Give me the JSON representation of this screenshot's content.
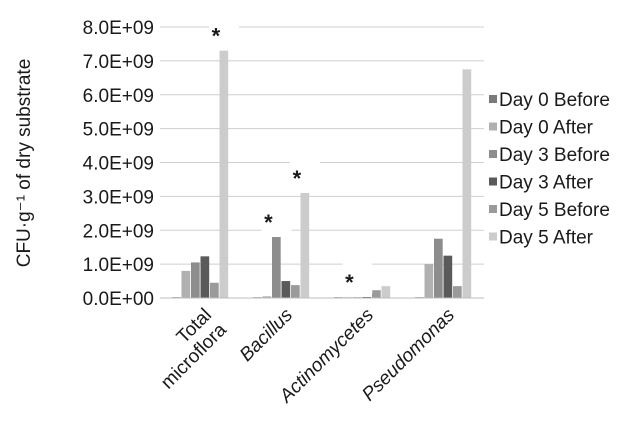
{
  "chart_data": {
    "type": "bar",
    "title": "",
    "xlabel": "",
    "ylabel": "CFU·g⁻¹ of dry substrate",
    "ylim": [
      0,
      8000000000
    ],
    "yticks": [
      0,
      1000000000,
      2000000000,
      3000000000,
      4000000000,
      5000000000,
      6000000000,
      7000000000,
      8000000000
    ],
    "ytick_labels": [
      "0.0E+00",
      "1.0E+09",
      "2.0E+09",
      "3.0E+09",
      "4.0E+09",
      "5.0E+09",
      "6.0E+09",
      "7.0E+09",
      "8.0E+09"
    ],
    "grid": "horizontal",
    "legend_position": "right",
    "categories": [
      {
        "lines": [
          "Total",
          "microflora"
        ],
        "italic": false
      },
      {
        "lines": [
          "Bacillus"
        ],
        "italic": true
      },
      {
        "lines": [
          "Actinomycetes"
        ],
        "italic": true
      },
      {
        "lines": [
          "Pseudomonas"
        ],
        "italic": true
      }
    ],
    "series": [
      {
        "name": "Day 0 Before",
        "color": "#7a7a7a",
        "values": [
          20000000,
          20000000,
          10000000,
          20000000
        ]
      },
      {
        "name": "Day 0 After",
        "color": "#b0b0b0",
        "values": [
          800000000,
          50000000,
          10000000,
          1000000000
        ]
      },
      {
        "name": "Day 3 Before",
        "color": "#8d8d8d",
        "values": [
          1050000000,
          1800000000,
          20000000,
          1750000000
        ]
      },
      {
        "name": "Day 3 After",
        "color": "#5a5a5a",
        "values": [
          1230000000,
          500000000,
          30000000,
          1250000000
        ]
      },
      {
        "name": "Day 5 Before",
        "color": "#9a9a9a",
        "values": [
          450000000,
          380000000,
          230000000,
          350000000
        ]
      },
      {
        "name": "Day 5 After",
        "color": "#cccccc",
        "values": [
          7300000000,
          3100000000,
          350000000,
          6750000000
        ]
      }
    ],
    "annotations": [
      {
        "text": "*",
        "category": 0,
        "series": 5
      },
      {
        "text": "*",
        "category": 1,
        "series": 2
      },
      {
        "text": "*",
        "category": 1,
        "series": 5
      },
      {
        "text": "*",
        "category": 2,
        "series": 2
      }
    ]
  }
}
